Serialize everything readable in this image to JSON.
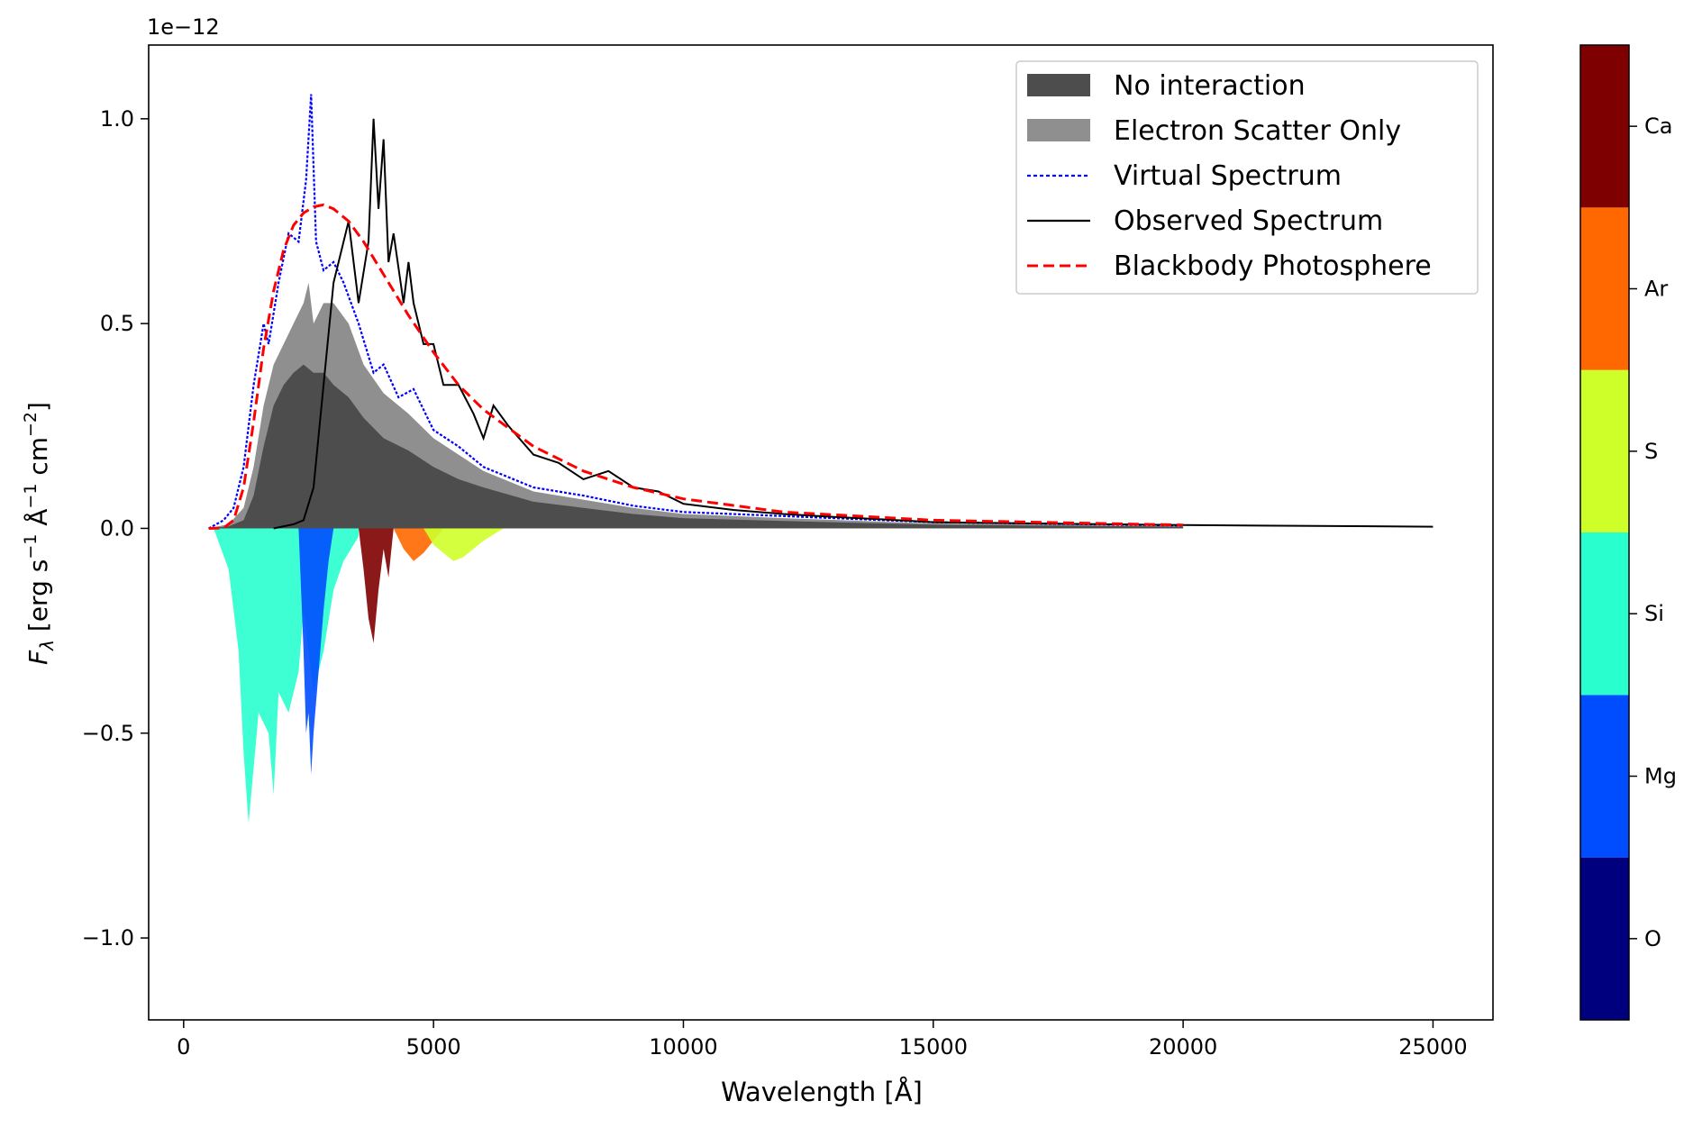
{
  "chart_data": {
    "type": "area",
    "xlabel": "Wavelength [Å]",
    "ylabel": "F",
    "ylabel_sub": "λ",
    "ylabel_units_prefix": " [erg s",
    "ylabel_units_exp1": "−1",
    "ylabel_units_mid": " Å",
    "ylabel_units_exp2": "−1",
    "ylabel_units_cm": " cm",
    "ylabel_units_exp3": "−2",
    "ylabel_units_suffix": "]",
    "y_offset_text": "1e−12",
    "xlim": [
      -700,
      26200
    ],
    "ylim": [
      -1.2,
      1.18
    ],
    "grid": false,
    "legend_position": "upper right",
    "x_ticks": [
      0,
      5000,
      10000,
      15000,
      20000,
      25000
    ],
    "x_tick_labels": [
      "0",
      "5000",
      "10000",
      "15000",
      "20000",
      "25000"
    ],
    "y_ticks": [
      -1.0,
      -0.5,
      0.0,
      0.5,
      1.0
    ],
    "y_tick_labels": [
      "−1.0",
      "−0.5",
      "0.0",
      "0.5",
      "1.0"
    ],
    "legend": [
      {
        "label": "No interaction",
        "kind": "patch",
        "color": "#4d4d4d"
      },
      {
        "label": "Electron Scatter Only",
        "kind": "patch",
        "color": "#8f8f8f"
      },
      {
        "label": "Virtual Spectrum",
        "kind": "dotted-line",
        "color": "#0000ff"
      },
      {
        "label": "Observed Spectrum",
        "kind": "line",
        "color": "#000000"
      },
      {
        "label": "Blackbody Photosphere",
        "kind": "dashed-line",
        "color": "#ff0000"
      }
    ],
    "series": [
      {
        "name": "Virtual Spectrum",
        "color": "#0000ff",
        "x": [
          500,
          800,
          1000,
          1200,
          1400,
          1600,
          1700,
          1900,
          2100,
          2300,
          2450,
          2550,
          2650,
          2800,
          3000,
          3200,
          3500,
          3800,
          4000,
          4300,
          4600,
          5000,
          5500,
          6000,
          7000,
          8000,
          9000,
          10000,
          12000,
          15000,
          20000
        ],
        "y": [
          0.0,
          0.02,
          0.05,
          0.15,
          0.35,
          0.5,
          0.45,
          0.6,
          0.72,
          0.7,
          0.85,
          1.06,
          0.7,
          0.63,
          0.65,
          0.6,
          0.5,
          0.38,
          0.4,
          0.32,
          0.34,
          0.24,
          0.2,
          0.15,
          0.1,
          0.08,
          0.055,
          0.04,
          0.03,
          0.015,
          0.007
        ]
      },
      {
        "name": "Observed Spectrum",
        "color": "#000000",
        "x": [
          1800,
          2200,
          2400,
          2600,
          2800,
          3000,
          3300,
          3500,
          3700,
          3800,
          3900,
          4000,
          4100,
          4200,
          4400,
          4500,
          4600,
          4800,
          5000,
          5200,
          5500,
          5800,
          6000,
          6200,
          6500,
          7000,
          7500,
          8000,
          8500,
          9000,
          9500,
          10000,
          11000,
          12000,
          13000,
          14000,
          15000,
          17000,
          20000,
          25000
        ],
        "y": [
          0.0,
          0.01,
          0.02,
          0.1,
          0.35,
          0.6,
          0.75,
          0.55,
          0.7,
          1.0,
          0.78,
          0.95,
          0.65,
          0.72,
          0.55,
          0.65,
          0.55,
          0.45,
          0.45,
          0.35,
          0.35,
          0.28,
          0.22,
          0.3,
          0.25,
          0.18,
          0.16,
          0.12,
          0.14,
          0.1,
          0.09,
          0.06,
          0.045,
          0.035,
          0.028,
          0.022,
          0.015,
          0.012,
          0.008,
          0.004
        ]
      },
      {
        "name": "Blackbody Photosphere",
        "color": "#ff0000",
        "x": [
          500,
          800,
          1000,
          1200,
          1400,
          1600,
          1800,
          2000,
          2200,
          2400,
          2600,
          2800,
          3000,
          3300,
          3600,
          4000,
          4500,
          5000,
          5500,
          6000,
          7000,
          8000,
          9000,
          10000,
          12000,
          15000,
          20000
        ],
        "y": [
          0.0,
          0.001,
          0.02,
          0.1,
          0.26,
          0.44,
          0.58,
          0.68,
          0.74,
          0.77,
          0.785,
          0.79,
          0.78,
          0.75,
          0.7,
          0.62,
          0.52,
          0.43,
          0.35,
          0.29,
          0.2,
          0.14,
          0.1,
          0.072,
          0.04,
          0.02,
          0.008
        ]
      },
      {
        "name": "Electron Scatter Only",
        "color": "#8f8f8f",
        "x": [
          500,
          900,
          1200,
          1400,
          1600,
          1800,
          2000,
          2200,
          2400,
          2500,
          2600,
          2800,
          3000,
          3300,
          3600,
          4000,
          4500,
          5000,
          5500,
          6000,
          7000,
          8000,
          9000,
          10000,
          12000,
          15000,
          20000
        ],
        "y": [
          0.0,
          0.01,
          0.05,
          0.15,
          0.3,
          0.4,
          0.45,
          0.5,
          0.55,
          0.6,
          0.5,
          0.55,
          0.55,
          0.5,
          0.4,
          0.33,
          0.28,
          0.22,
          0.18,
          0.14,
          0.09,
          0.07,
          0.05,
          0.035,
          0.025,
          0.012,
          0.005
        ]
      },
      {
        "name": "No interaction",
        "color": "#4d4d4d",
        "x": [
          500,
          900,
          1200,
          1400,
          1600,
          1800,
          2000,
          2200,
          2400,
          2600,
          2800,
          3000,
          3300,
          3600,
          4000,
          4500,
          5000,
          5500,
          6000,
          7000,
          8000,
          9000,
          10000,
          12000,
          15000,
          20000
        ],
        "y": [
          0.0,
          0.005,
          0.02,
          0.08,
          0.2,
          0.3,
          0.35,
          0.38,
          0.4,
          0.38,
          0.38,
          0.35,
          0.32,
          0.27,
          0.22,
          0.19,
          0.15,
          0.12,
          0.1,
          0.065,
          0.05,
          0.035,
          0.025,
          0.018,
          0.009,
          0.004
        ]
      }
    ],
    "absorption": [
      {
        "element": "Si",
        "x": [
          600,
          900,
          1100,
          1200,
          1300,
          1500,
          1700,
          1800,
          1900,
          2100,
          2300,
          2400,
          2600,
          2800,
          3000,
          3200,
          3500
        ],
        "y": [
          0.0,
          -0.1,
          -0.3,
          -0.55,
          -0.72,
          -0.45,
          -0.5,
          -0.65,
          -0.4,
          -0.45,
          -0.35,
          -0.2,
          -0.4,
          -0.3,
          -0.15,
          -0.08,
          -0.02
        ]
      },
      {
        "element": "Mg",
        "x": [
          2300,
          2400,
          2450,
          2500,
          2550,
          2600,
          2700,
          2800,
          2900,
          3000
        ],
        "y": [
          0.0,
          -0.3,
          -0.5,
          -0.45,
          -0.6,
          -0.5,
          -0.35,
          -0.2,
          -0.08,
          0.0
        ]
      },
      {
        "element": "Ca",
        "x": [
          3500,
          3600,
          3700,
          3800,
          3900,
          4000,
          4100,
          4200
        ],
        "y": [
          0.0,
          -0.1,
          -0.22,
          -0.28,
          -0.15,
          -0.05,
          -0.12,
          0.0
        ]
      },
      {
        "element": "Ar",
        "x": [
          4200,
          4400,
          4600,
          4800,
          5000,
          5200
        ],
        "y": [
          0.0,
          -0.05,
          -0.08,
          -0.06,
          -0.03,
          0.0
        ]
      },
      {
        "element": "S",
        "x": [
          4800,
          5000,
          5200,
          5400,
          5600,
          5800,
          6000,
          6400
        ],
        "y": [
          0.0,
          -0.04,
          -0.06,
          -0.08,
          -0.07,
          -0.05,
          -0.03,
          0.0
        ]
      }
    ],
    "colorbar": {
      "labels": [
        "O",
        "Mg",
        "Si",
        "S",
        "Ar",
        "Ca"
      ],
      "colors": [
        "#00007f",
        "#004cff",
        "#29ffce",
        "#ceff29",
        "#ff6800",
        "#7f0000"
      ]
    }
  }
}
